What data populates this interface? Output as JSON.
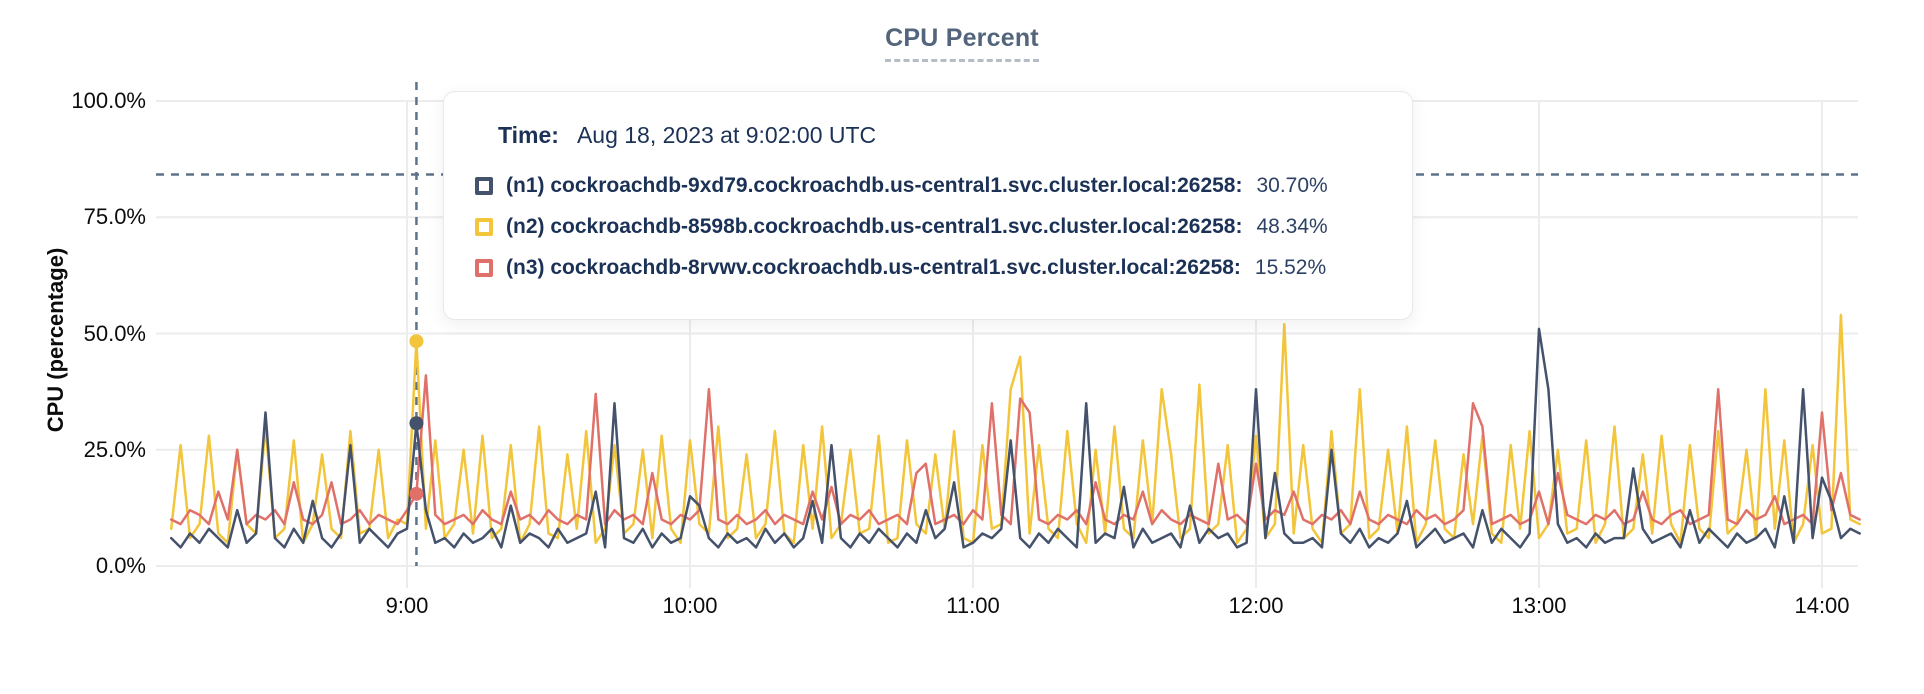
{
  "title": "CPU Percent",
  "tooltip": {
    "time_label": "Time:",
    "time_value": "Aug 18, 2023 at 9:02:00 UTC",
    "rows": [
      {
        "label": "(n1) cockroachdb-9xd79.cockroachdb.us-central1.svc.cluster.local:26258:",
        "value": "30.70%",
        "color": "#45526c"
      },
      {
        "label": "(n2) cockroachdb-8598b.cockroachdb.us-central1.svc.cluster.local:26258:",
        "value": "48.34%",
        "color": "#f3c53b"
      },
      {
        "label": "(n3) cockroachdb-8rvwv.cockroachdb.us-central1.svc.cluster.local:26258:",
        "value": "15.52%",
        "color": "#e0716a"
      }
    ]
  },
  "chart_data": {
    "type": "line",
    "title": "CPU Percent",
    "xlabel": "",
    "ylabel": "CPU (percentage)",
    "ylim": [
      0,
      100
    ],
    "grid": true,
    "legend_position": "tooltip-overlay",
    "y_ticks": [
      "0.0%",
      "25.0%",
      "50.0%",
      "75.0%",
      "100.0%"
    ],
    "x_ticks": [
      "9:00",
      "10:00",
      "11:00",
      "12:00",
      "13:00",
      "14:00"
    ],
    "x_range_time": [
      "8:10",
      "14:08"
    ],
    "start_minutes": 490,
    "sample_interval_minutes": 2,
    "hover": {
      "time": "9:02",
      "cursor_y_percent": 84.2,
      "cursor_color": "#5d7389",
      "values": [
        30.7,
        48.34,
        15.52
      ]
    },
    "style": {
      "grid_color": "#ececec",
      "axis_text_color": "#0c0c0c",
      "title_color": "#53657c"
    },
    "series": [
      {
        "name": "n1",
        "host": "cockroachdb-9xd79.cockroachdb.us-central1.svc.cluster.local:26258",
        "color": "#45526c",
        "values": [
          6,
          4,
          7,
          5,
          8,
          6,
          4,
          12,
          5,
          7,
          33,
          6,
          4,
          8,
          5,
          14,
          6,
          4,
          7,
          26,
          5,
          8,
          6,
          4,
          7,
          8,
          30.7,
          12,
          5,
          6,
          4,
          7,
          5,
          6,
          8,
          4,
          13,
          5,
          7,
          6,
          4,
          8,
          5,
          6,
          7,
          16,
          4,
          35,
          6,
          5,
          8,
          4,
          7,
          5,
          6,
          15,
          13,
          6,
          4,
          7,
          5,
          6,
          4,
          8,
          5,
          7,
          4,
          6,
          14,
          5,
          26,
          6,
          4,
          7,
          5,
          8,
          6,
          4,
          7,
          5,
          12,
          6,
          8,
          18,
          4,
          5,
          7,
          6,
          8,
          27,
          6,
          4,
          7,
          5,
          8,
          6,
          4,
          35,
          5,
          7,
          6,
          17,
          4,
          8,
          5,
          6,
          7,
          4,
          13,
          5,
          8,
          6,
          7,
          4,
          5,
          38,
          6,
          20,
          7,
          5,
          5,
          6,
          4,
          25,
          7,
          5,
          8,
          4,
          6,
          5,
          7,
          14,
          4,
          6,
          8,
          5,
          6,
          7,
          4,
          12,
          5,
          8,
          6,
          4,
          7,
          51,
          38,
          9,
          5,
          6,
          4,
          7,
          5,
          6,
          6,
          21,
          8,
          5,
          6,
          7,
          4,
          12,
          5,
          8,
          6,
          4,
          7,
          5,
          6,
          8,
          4,
          15,
          5,
          38,
          6,
          19,
          14,
          6,
          8,
          7
        ]
      },
      {
        "name": "n2",
        "host": "cockroachdb-8598b.cockroachdb.us-central1.svc.cluster.local:26258",
        "color": "#f3c53b",
        "values": [
          8,
          26,
          6,
          9,
          28,
          7,
          5,
          25,
          9,
          7,
          30,
          6,
          8,
          27,
          5,
          9,
          24,
          8,
          6,
          29,
          7,
          8,
          25,
          6,
          10,
          9,
          48.34,
          8,
          27,
          6,
          9,
          25,
          7,
          28,
          6,
          8,
          26,
          5,
          9,
          30,
          7,
          6,
          24,
          8,
          29,
          5,
          8,
          26,
          7,
          9,
          25,
          6,
          28,
          8,
          5,
          27,
          9,
          7,
          30,
          6,
          8,
          24,
          6,
          9,
          29,
          7,
          5,
          26,
          8,
          30,
          6,
          9,
          25,
          7,
          8,
          28,
          5,
          6,
          27,
          9,
          7,
          24,
          8,
          29,
          6,
          5,
          26,
          8,
          9,
          38,
          45,
          7,
          26,
          8,
          6,
          29,
          9,
          5,
          25,
          7,
          30,
          8,
          6,
          27,
          9,
          38,
          24,
          6,
          8,
          39,
          7,
          9,
          26,
          5,
          8,
          28,
          6,
          9,
          52,
          7,
          26,
          8,
          5,
          29,
          7,
          9,
          38,
          6,
          8,
          25,
          7,
          30,
          5,
          9,
          27,
          8,
          6,
          24,
          9,
          28,
          7,
          5,
          26,
          8,
          29,
          6,
          9,
          25,
          7,
          8,
          27,
          5,
          9,
          30,
          6,
          8,
          24,
          7,
          28,
          9,
          5,
          26,
          8,
          6,
          29,
          7,
          9,
          25,
          6,
          38,
          8,
          27,
          5,
          9,
          26,
          7,
          8,
          54,
          10,
          9
        ]
      },
      {
        "name": "n3",
        "host": "cockroachdb-8rvwv.cockroachdb.us-central1.svc.cluster.local:26258",
        "color": "#e0716a",
        "values": [
          10,
          9,
          12,
          11,
          9,
          16,
          10,
          25,
          9,
          11,
          10,
          12,
          9,
          18,
          10,
          9,
          11,
          18,
          9,
          10,
          12,
          9,
          11,
          10,
          9,
          12,
          15.52,
          41,
          11,
          9,
          10,
          11,
          9,
          12,
          10,
          9,
          16,
          10,
          11,
          9,
          12,
          10,
          9,
          11,
          10,
          37,
          9,
          12,
          10,
          11,
          9,
          20,
          10,
          9,
          11,
          10,
          12,
          38,
          10,
          9,
          11,
          9,
          10,
          12,
          9,
          11,
          10,
          9,
          16,
          10,
          17,
          9,
          11,
          10,
          12,
          9,
          10,
          11,
          9,
          20,
          22,
          9,
          10,
          11,
          9,
          12,
          10,
          35,
          11,
          9,
          36,
          33,
          10,
          9,
          11,
          10,
          12,
          9,
          18,
          10,
          9,
          11,
          10,
          16,
          9,
          12,
          10,
          9,
          11,
          10,
          9,
          22,
          10,
          11,
          9,
          22,
          10,
          12,
          11,
          16,
          10,
          9,
          11,
          10,
          12,
          9,
          16,
          10,
          9,
          11,
          10,
          9,
          12,
          10,
          11,
          9,
          10,
          12,
          35,
          30,
          9,
          10,
          11,
          9,
          10,
          16,
          9,
          20,
          11,
          10,
          9,
          11,
          10,
          12,
          9,
          10,
          16,
          10,
          9,
          11,
          12,
          9,
          10,
          11,
          38,
          10,
          9,
          12,
          10,
          11,
          15,
          9,
          10,
          11,
          9,
          33,
          12,
          20,
          11,
          10
        ]
      }
    ]
  }
}
